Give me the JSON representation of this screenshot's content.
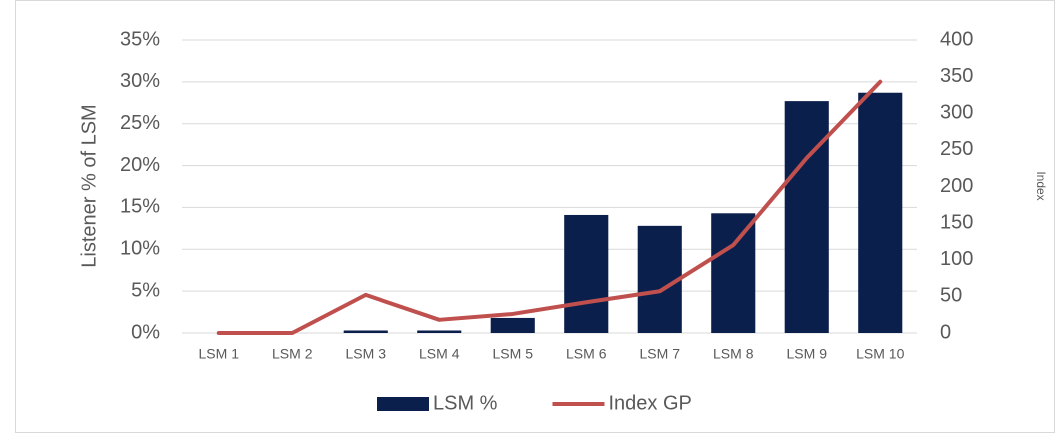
{
  "chart_data": {
    "type": "bar_line",
    "categories": [
      "LSM 1",
      "LSM 2",
      "LSM 3",
      "LSM 4",
      "LSM 5",
      "LSM 6",
      "LSM 7",
      "LSM 8",
      "LSM 9",
      "LSM 10"
    ],
    "series": [
      {
        "name": "LSM %",
        "type": "bar",
        "color": "#0b1f4d",
        "values": [
          0,
          0,
          0.3,
          0.3,
          1.8,
          14.1,
          12.8,
          14.3,
          27.7,
          28.7
        ]
      },
      {
        "name": "Index GP",
        "type": "line",
        "axis": "y2",
        "color": "#c0504d",
        "values": [
          0,
          0,
          52,
          18,
          26,
          42,
          57,
          120,
          239,
          343
        ]
      }
    ],
    "ylabel": "Listener % of LSM",
    "y2label": "Index",
    "ylim": [
      0,
      35
    ],
    "yticks": [
      {
        "value": 0,
        "label": "0%"
      },
      {
        "value": 5,
        "label": "5%"
      },
      {
        "value": 10,
        "label": "10%"
      },
      {
        "value": 15,
        "label": "15%"
      },
      {
        "value": 20,
        "label": "20%"
      },
      {
        "value": 25,
        "label": "25%"
      },
      {
        "value": 30,
        "label": "30%"
      },
      {
        "value": 35,
        "label": "35%"
      }
    ],
    "y2lim": [
      0,
      400
    ],
    "y2ticks": [
      0,
      50,
      100,
      150,
      200,
      250,
      300,
      350,
      400
    ],
    "grid": true,
    "legend": "bottom"
  }
}
